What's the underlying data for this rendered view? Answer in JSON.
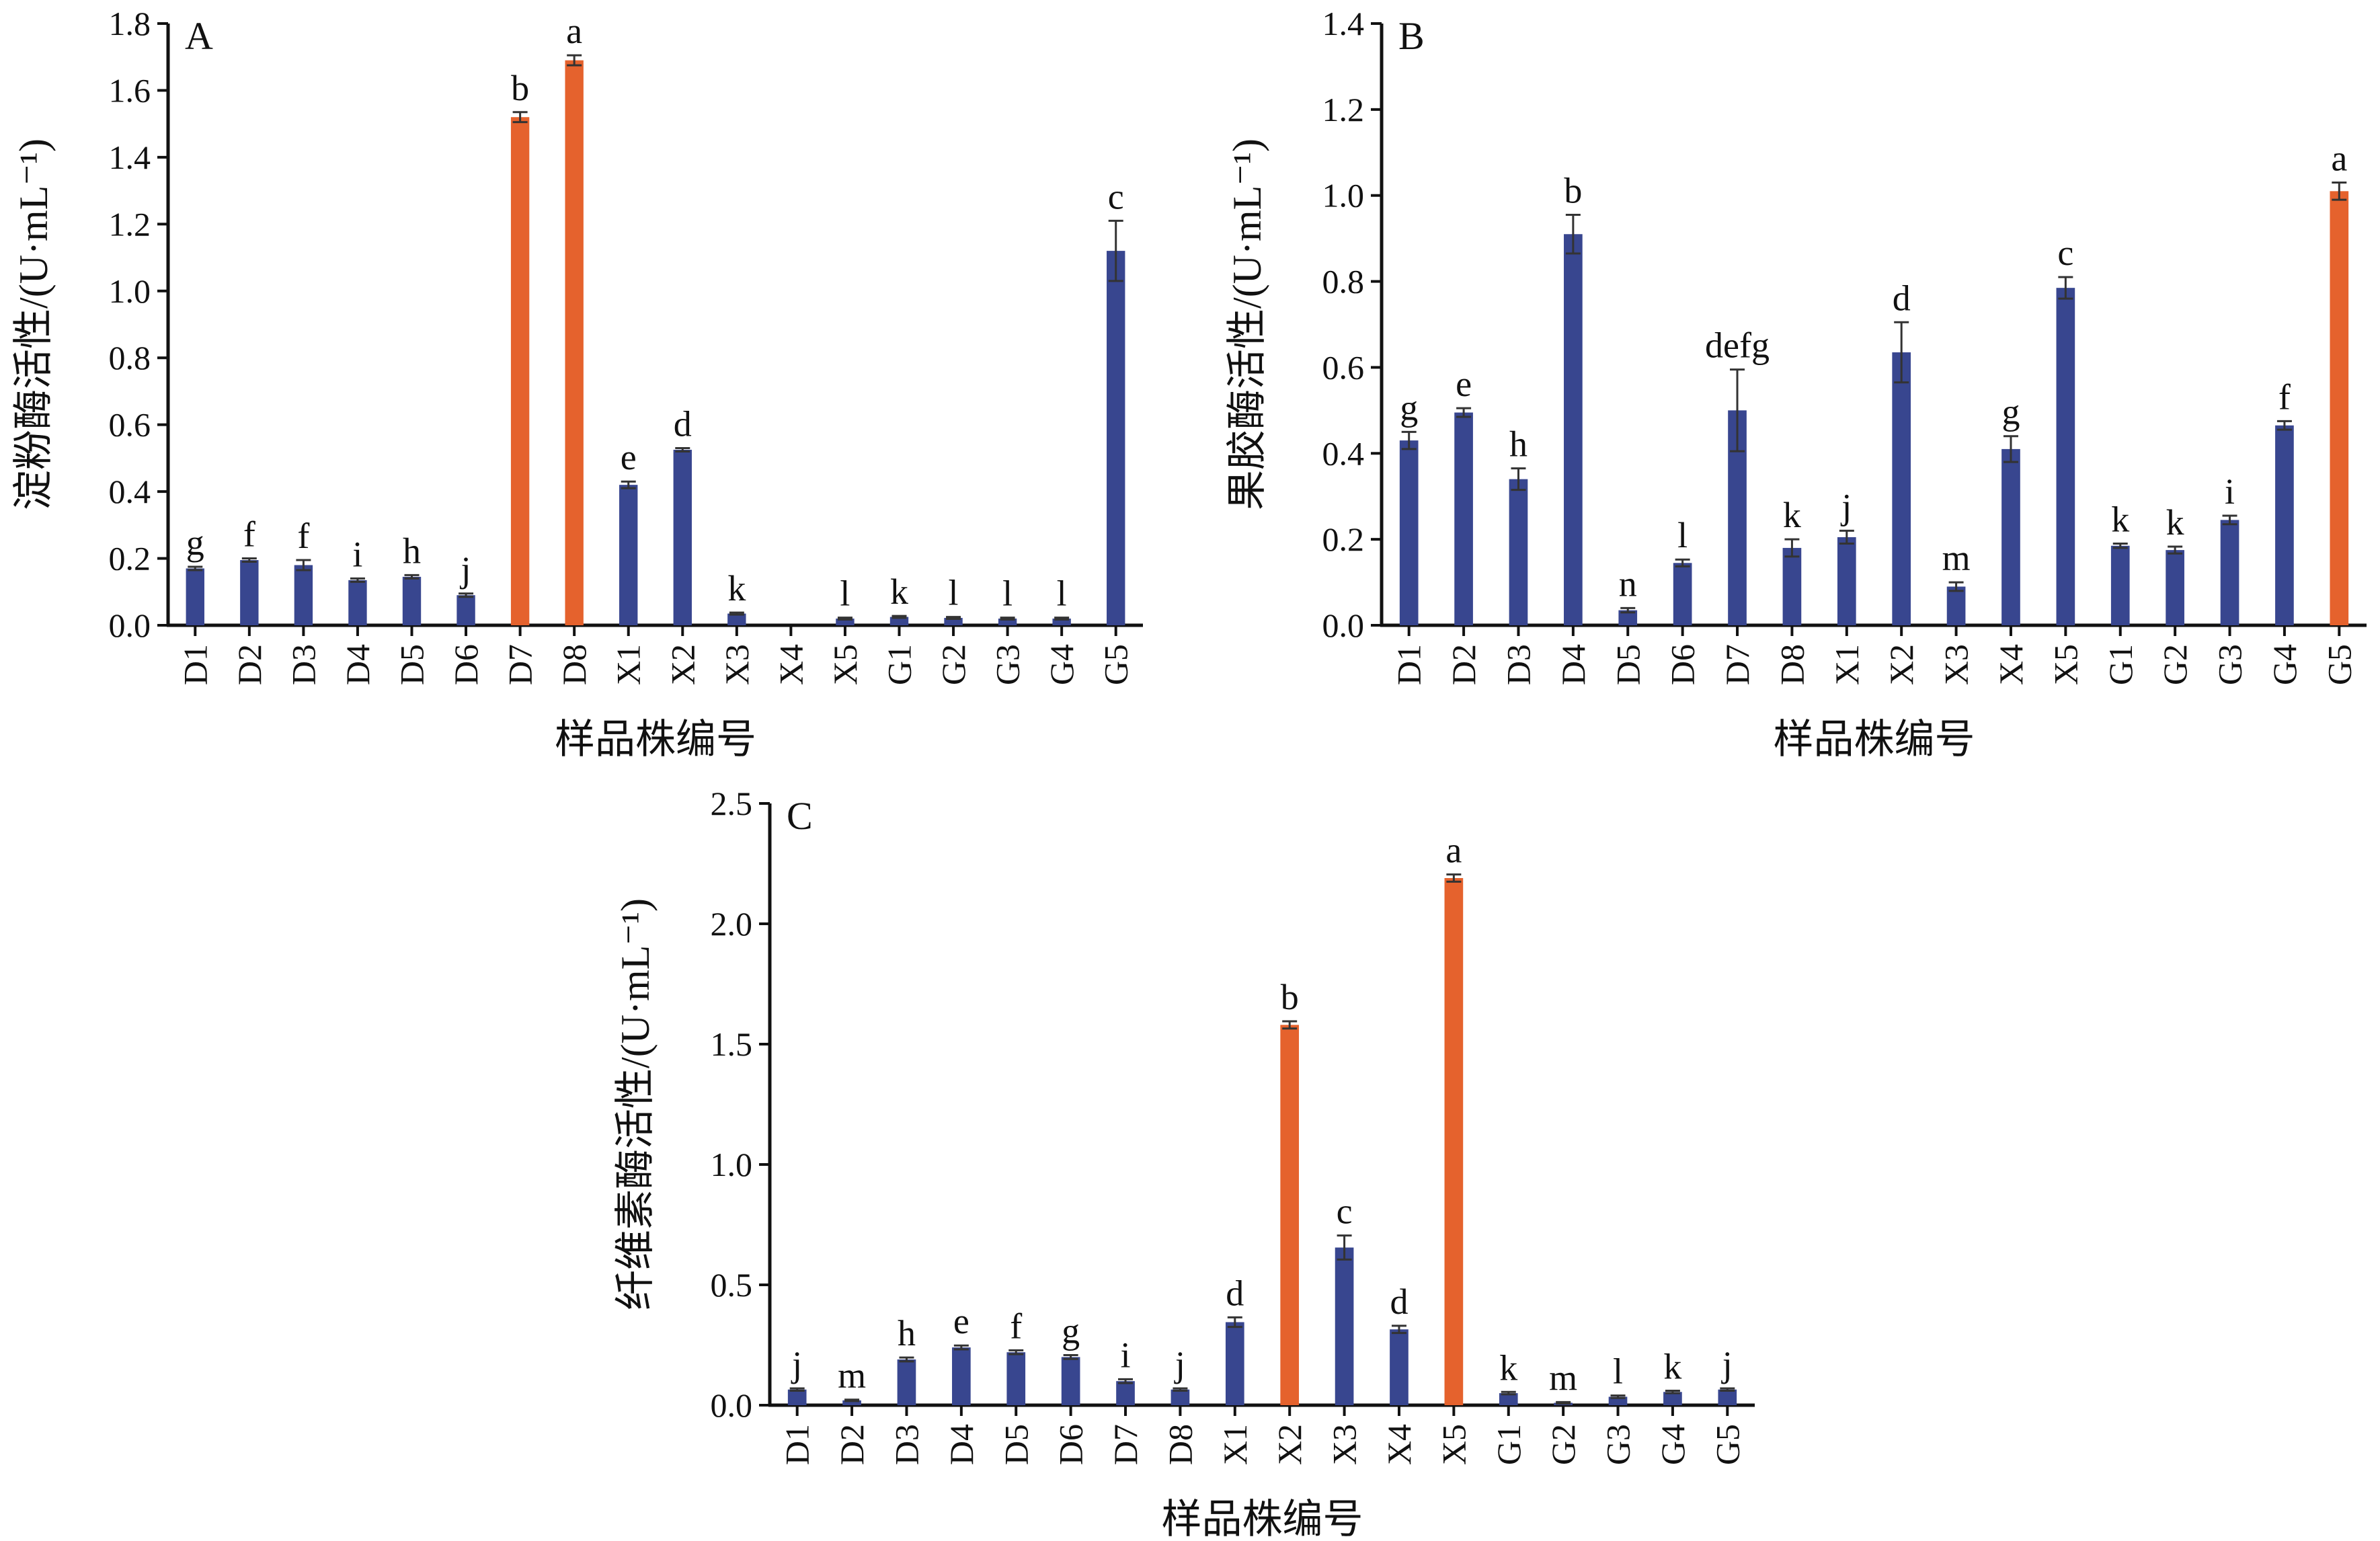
{
  "colors": {
    "normal": "#38468f",
    "highlight": "#e5622d",
    "axis": "#111111",
    "error_bar": "#333333"
  },
  "chart_data": [
    {
      "type": "bar",
      "panel": "A",
      "ylabel": "淀粉酶活性/(U·mL⁻¹)",
      "xlabel": "样品株编号",
      "ylim": [
        0,
        1.8
      ],
      "yticks": [
        0,
        0.2,
        0.4,
        0.6,
        0.8,
        1.0,
        1.2,
        1.4,
        1.6,
        1.8
      ],
      "ytick_labels": [
        "0.0",
        "0.2",
        "0.4",
        "0.6",
        "0.8",
        "1.0",
        "1.2",
        "1.4",
        "1.6",
        "1.8"
      ],
      "categories": [
        "D1",
        "D2",
        "D3",
        "D4",
        "D5",
        "D6",
        "D7",
        "D8",
        "X1",
        "X2",
        "X3",
        "X4",
        "X5",
        "G1",
        "G2",
        "G3",
        "G4",
        "G5"
      ],
      "values": [
        0.17,
        0.195,
        0.18,
        0.135,
        0.145,
        0.09,
        1.52,
        1.69,
        0.42,
        0.525,
        0.035,
        0.0,
        0.02,
        0.025,
        0.022,
        0.02,
        0.02,
        1.12
      ],
      "errors": [
        0.005,
        0.005,
        0.015,
        0.005,
        0.005,
        0.005,
        0.015,
        0.015,
        0.01,
        0.005,
        0.003,
        0.0,
        0.003,
        0.003,
        0.003,
        0.003,
        0.003,
        0.09
      ],
      "letters": [
        "g",
        "f",
        "f",
        "i",
        "h",
        "j",
        "b",
        "a",
        "e",
        "d",
        "k",
        "",
        "l",
        "k",
        "l",
        "l",
        "l",
        "c"
      ],
      "highlight": [
        false,
        false,
        false,
        false,
        false,
        false,
        true,
        true,
        false,
        false,
        false,
        false,
        false,
        false,
        false,
        false,
        false,
        false
      ],
      "grid": false
    },
    {
      "type": "bar",
      "panel": "B",
      "ylabel": "果胶酶活性/(U·mL⁻¹)",
      "xlabel": "样品株编号",
      "ylim": [
        0,
        1.4
      ],
      "yticks": [
        0,
        0.2,
        0.4,
        0.6,
        0.8,
        1.0,
        1.2,
        1.4
      ],
      "ytick_labels": [
        "0.0",
        "0.2",
        "0.4",
        "0.6",
        "0.8",
        "1.0",
        "1.2",
        "1.4"
      ],
      "categories": [
        "D1",
        "D2",
        "D3",
        "D4",
        "D5",
        "D6",
        "D7",
        "D8",
        "X1",
        "X2",
        "X3",
        "X4",
        "X5",
        "G1",
        "G2",
        "G3",
        "G4",
        "G5"
      ],
      "values": [
        0.43,
        0.495,
        0.34,
        0.91,
        0.035,
        0.145,
        0.5,
        0.18,
        0.205,
        0.635,
        0.09,
        0.41,
        0.785,
        0.185,
        0.175,
        0.245,
        0.465,
        1.01
      ],
      "errors": [
        0.02,
        0.01,
        0.025,
        0.045,
        0.005,
        0.008,
        0.095,
        0.02,
        0.015,
        0.07,
        0.01,
        0.03,
        0.025,
        0.005,
        0.008,
        0.01,
        0.01,
        0.02
      ],
      "letters": [
        "g",
        "e",
        "h",
        "b",
        "n",
        "l",
        "defg",
        "k",
        "j",
        "d",
        "m",
        "g",
        "c",
        "k",
        "k",
        "i",
        "f",
        "a"
      ],
      "highlight": [
        false,
        false,
        false,
        false,
        false,
        false,
        false,
        false,
        false,
        false,
        false,
        false,
        false,
        false,
        false,
        false,
        false,
        true
      ],
      "grid": false
    },
    {
      "type": "bar",
      "panel": "C",
      "ylabel": "纤维素酶活性/(U·mL⁻¹)",
      "xlabel": "样品株编号",
      "ylim": [
        0,
        2.5
      ],
      "yticks": [
        0,
        0.5,
        1.0,
        1.5,
        2.0,
        2.5
      ],
      "ytick_labels": [
        "0.0",
        "0.5",
        "1.0",
        "1.5",
        "2.0",
        "2.5"
      ],
      "categories": [
        "D1",
        "D2",
        "D3",
        "D4",
        "D5",
        "D6",
        "D7",
        "D8",
        "X1",
        "X2",
        "X3",
        "X4",
        "X5",
        "G1",
        "G2",
        "G3",
        "G4",
        "G5"
      ],
      "values": [
        0.065,
        0.02,
        0.19,
        0.24,
        0.22,
        0.2,
        0.1,
        0.065,
        0.345,
        1.58,
        0.655,
        0.315,
        2.19,
        0.05,
        0.01,
        0.035,
        0.055,
        0.065
      ],
      "errors": [
        0.005,
        0.003,
        0.008,
        0.008,
        0.008,
        0.008,
        0.008,
        0.005,
        0.02,
        0.015,
        0.05,
        0.015,
        0.015,
        0.005,
        0.003,
        0.005,
        0.005,
        0.005
      ],
      "letters": [
        "j",
        "m",
        "h",
        "e",
        "f",
        "g",
        "i",
        "j",
        "d",
        "b",
        "c",
        "d",
        "a",
        "k",
        "m",
        "l",
        "k",
        "j"
      ],
      "highlight": [
        false,
        false,
        false,
        false,
        false,
        false,
        false,
        false,
        false,
        true,
        false,
        false,
        true,
        false,
        false,
        false,
        false,
        false
      ],
      "grid": false
    }
  ]
}
